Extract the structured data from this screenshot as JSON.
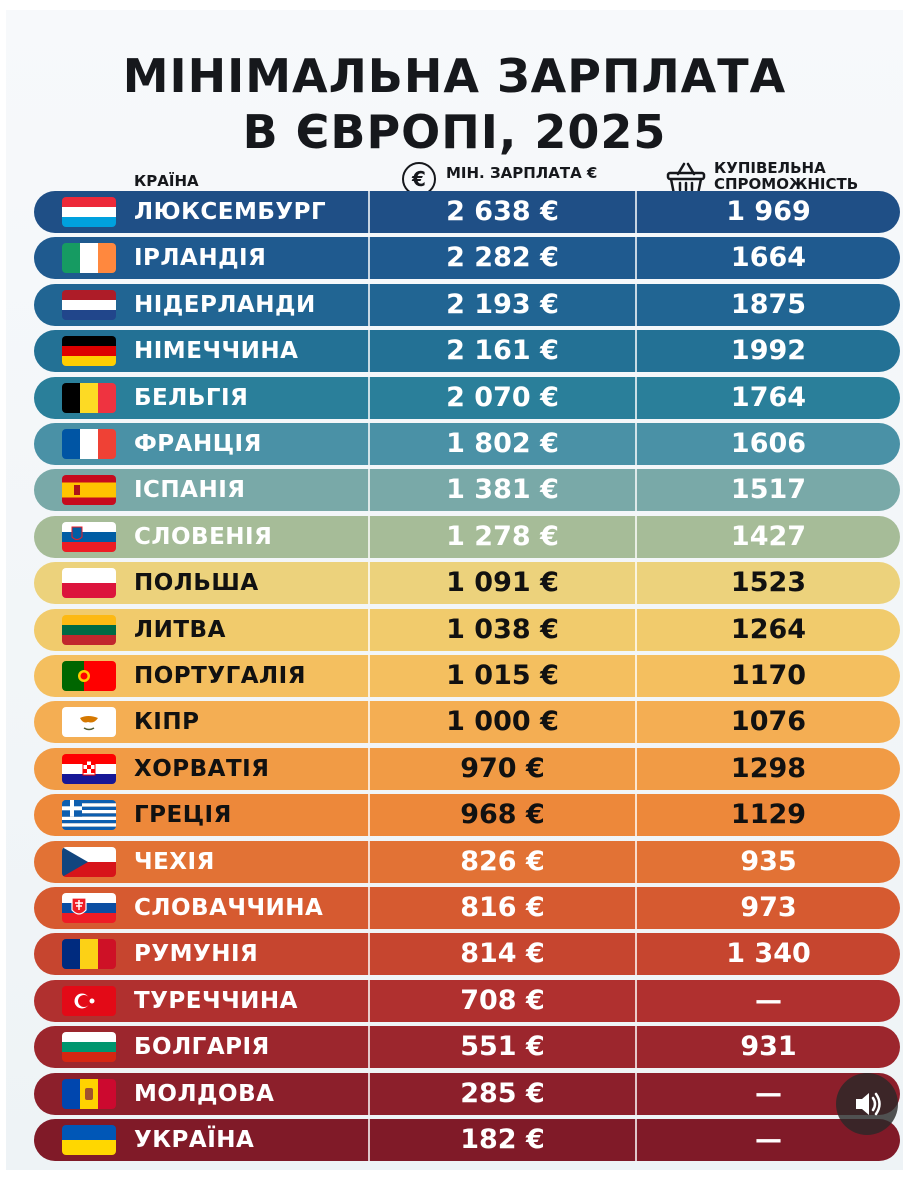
{
  "title_line1": "МІНІМАЛЬНА ЗАРПЛАТА",
  "title_line2": "В ЄВРОПІ, 2025",
  "headers": {
    "country": "КРАЇНА",
    "wage": "МІН. ЗАРПЛАТА €",
    "power": "КУПІВЕЛЬНА СПРОМОЖНІСТЬ",
    "euro_symbol": "€"
  },
  "icons": {
    "wage": "euro-circle-icon",
    "power": "shopping-basket-icon",
    "sound": "speaker-icon"
  },
  "chart_data": {
    "type": "table",
    "title": "МІНІМАЛЬНА ЗАРПЛАТА В ЄВРОПІ, 2025",
    "columns": [
      "КРАЇНА",
      "МІН. ЗАРПЛАТА €",
      "КУПІВЕЛЬНА СПРОМОЖНІСТЬ"
    ],
    "rows": [
      {
        "country": "ЛЮКСЕМБУРГ",
        "wage": "2 638 €",
        "power": "1 969",
        "flag": "luxembourg",
        "color": "#1f4f86"
      },
      {
        "country": "ІРЛАНДІЯ",
        "wage": "2 282 €",
        "power": "1664",
        "flag": "ireland",
        "color": "#1f5a8f"
      },
      {
        "country": "НІДЕРЛАНДИ",
        "wage": "2 193 €",
        "power": "1875",
        "flag": "netherlands",
        "color": "#216593"
      },
      {
        "country": "НІМЕЧЧИНА",
        "wage": "2 161 €",
        "power": "1992",
        "flag": "germany",
        "color": "#237195"
      },
      {
        "country": "БЕЛЬГІЯ",
        "wage": "2 070 €",
        "power": "1764",
        "flag": "belgium",
        "color": "#2a7f9a"
      },
      {
        "country": "ФРАНЦІЯ",
        "wage": "1 802 €",
        "power": "1606",
        "flag": "france",
        "color": "#4a91a6"
      },
      {
        "country": "ІСПАНІЯ",
        "wage": "1 381 €",
        "power": "1517",
        "flag": "spain",
        "color": "#79a9a8"
      },
      {
        "country": "СЛОВЕНІЯ",
        "wage": "1 278 €",
        "power": "1427",
        "flag": "slovenia",
        "color": "#a6bc98"
      },
      {
        "country": "ПОЛЬША",
        "wage": "1 091 €",
        "power": "1523",
        "flag": "poland",
        "color": "#ecd27c"
      },
      {
        "country": "ЛИТВА",
        "wage": "1 038 €",
        "power": "1264",
        "flag": "lithuania",
        "color": "#f1cb6c"
      },
      {
        "country": "ПОРТУГАЛІЯ",
        "wage": "1 015 €",
        "power": "1170",
        "flag": "portugal",
        "color": "#f4bf5f"
      },
      {
        "country": "КІПР",
        "wage": "1 000 €",
        "power": "1076",
        "flag": "cyprus",
        "color": "#f4ae53"
      },
      {
        "country": "ХОРВАТІЯ",
        "wage": "970 €",
        "power": "1298",
        "flag": "croatia",
        "color": "#f19b45"
      },
      {
        "country": "ГРЕЦІЯ",
        "wage": "968 €",
        "power": "1129",
        "flag": "greece",
        "color": "#ed883a"
      },
      {
        "country": "ЧЕХІЯ",
        "wage": "826 €",
        "power": "935",
        "flag": "czechia",
        "color": "#e27235"
      },
      {
        "country": "СЛОВАЧЧИНА",
        "wage": "816 €",
        "power": "973",
        "flag": "slovakia",
        "color": "#d65a30"
      },
      {
        "country": "РУМУНІЯ",
        "wage": "814 €",
        "power": "1 340",
        "flag": "romania",
        "color": "#c6452f"
      },
      {
        "country": "ТУРЕЧЧИНА",
        "wage": "708 €",
        "power": "—",
        "flag": "turkey",
        "color": "#b0302f"
      },
      {
        "country": "БОЛГАРІЯ",
        "wage": "551 €",
        "power": "931",
        "flag": "bulgaria",
        "color": "#9c262d"
      },
      {
        "country": "МОЛДОВА",
        "wage": "285 €",
        "power": "—",
        "flag": "moldova",
        "color": "#8c1f2b"
      },
      {
        "country": "УКРАЇНА",
        "wage": "182 €",
        "power": "—",
        "flag": "ukraine",
        "color": "#801a28"
      }
    ]
  }
}
